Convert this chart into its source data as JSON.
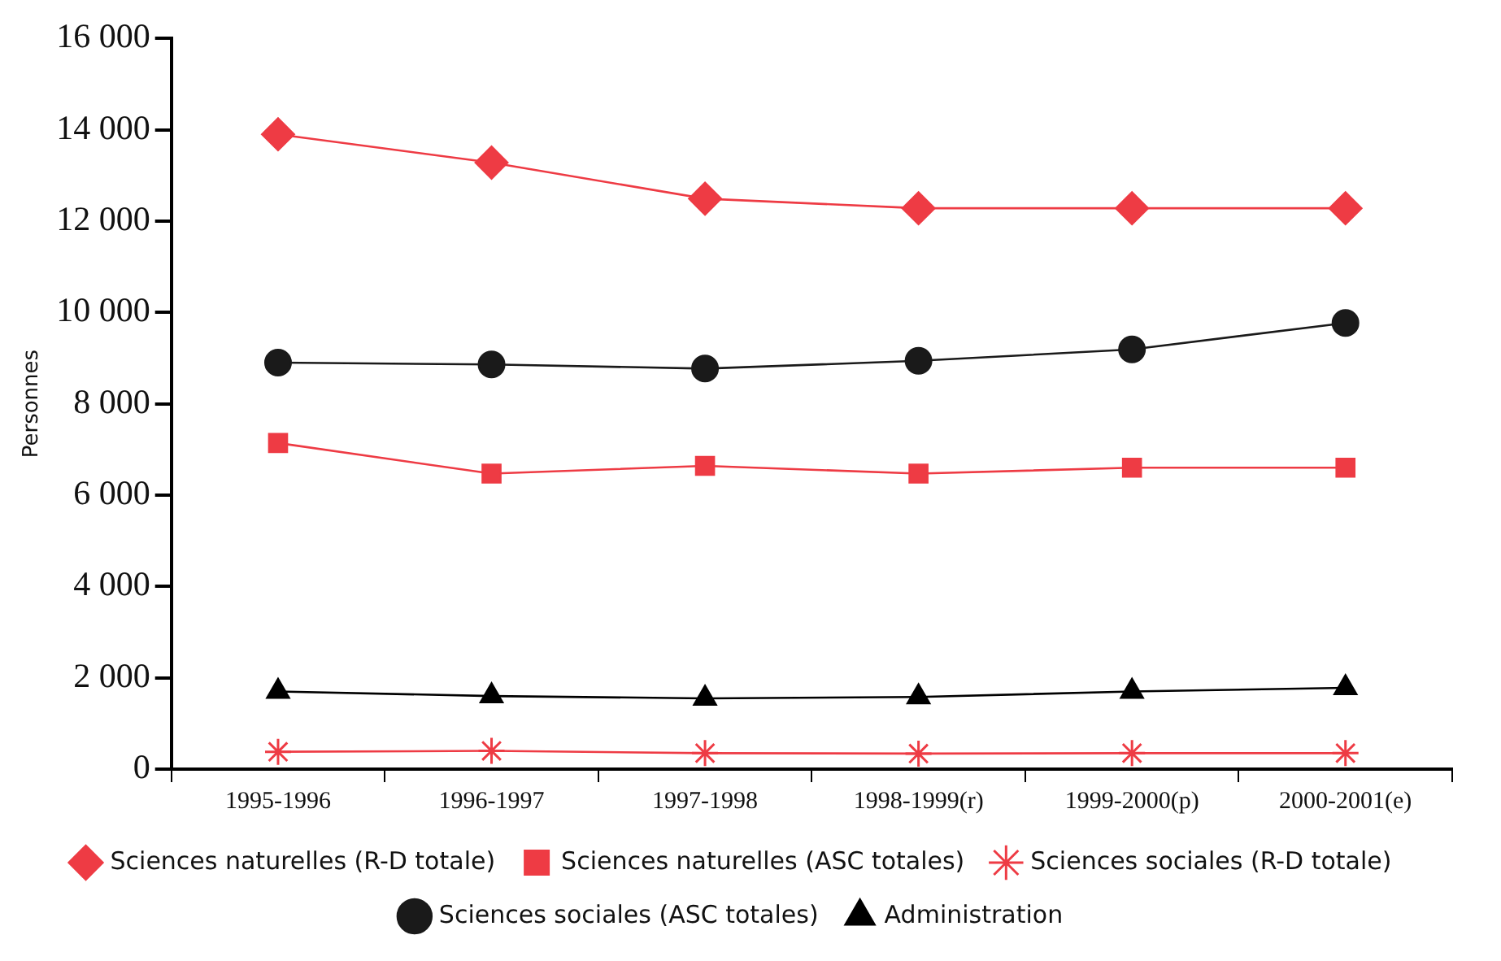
{
  "chart_data": {
    "type": "line",
    "ylabel": "Personnes",
    "categories": [
      "1995-1996",
      "1996-1997",
      "1997-1998",
      "1998-1999(r)",
      "1999-2000(p)",
      "2000-2001(e)"
    ],
    "series": [
      {
        "name": "Sciences naturelles (R-D totale)",
        "color": "#ee3b44",
        "marker": "diamond",
        "values": [
          13900,
          13280,
          12490,
          12280,
          12280,
          12280
        ]
      },
      {
        "name": "Sciences naturelles (ASC totales)",
        "color": "#ee3b44",
        "marker": "square",
        "values": [
          7140,
          6470,
          6640,
          6470,
          6600,
          6600
        ]
      },
      {
        "name": "Sciences sociales (R-D totale)",
        "color": "#ee3b44",
        "marker": "cross",
        "values": [
          380,
          400,
          350,
          340,
          350,
          350
        ]
      },
      {
        "name": "Sciences sociales (ASC totales)",
        "color": "#1a1a1a",
        "marker": "circle",
        "values": [
          8900,
          8860,
          8770,
          8940,
          9190,
          9770
        ]
      },
      {
        "name": "Administration",
        "color": "#000000",
        "marker": "triangle",
        "values": [
          1700,
          1600,
          1550,
          1580,
          1700,
          1780
        ]
      }
    ],
    "ylim": [
      0,
      16000
    ],
    "yticks": [
      {
        "value": 0,
        "label": "0"
      },
      {
        "value": 2000,
        "label": "2 000"
      },
      {
        "value": 4000,
        "label": "4 000"
      },
      {
        "value": 6000,
        "label": "6 000"
      },
      {
        "value": 8000,
        "label": "8 000"
      },
      {
        "value": 10000,
        "label": "10 000"
      },
      {
        "value": 12000,
        "label": "12 000"
      },
      {
        "value": 14000,
        "label": "14 000"
      },
      {
        "value": 16000,
        "label": "16 000"
      }
    ],
    "grid": false,
    "legend": "bottom",
    "line_style": "solid"
  }
}
